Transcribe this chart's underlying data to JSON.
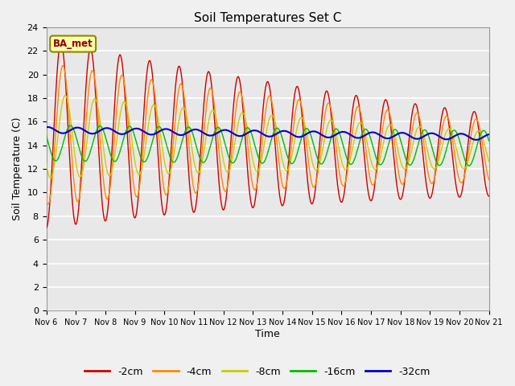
{
  "title": "Soil Temperatures Set C",
  "xlabel": "Time",
  "ylabel": "Soil Temperature (C)",
  "xlim": [
    0,
    15
  ],
  "ylim": [
    0,
    24
  ],
  "yticks": [
    0,
    2,
    4,
    6,
    8,
    10,
    12,
    14,
    16,
    18,
    20,
    22,
    24
  ],
  "xtick_labels": [
    "Nov 6",
    "Nov 7",
    "Nov 8",
    "Nov 9",
    "Nov 10",
    "Nov 11",
    "Nov 12",
    "Nov 13",
    "Nov 14",
    "Nov 15",
    "Nov 16",
    "Nov 17",
    "Nov 18",
    "Nov 19",
    "Nov 20",
    "Nov 21"
  ],
  "colors": {
    "-2cm": "#cc0000",
    "-4cm": "#ff8800",
    "-8cm": "#cccc00",
    "-16cm": "#00bb00",
    "-32cm": "#0000cc"
  },
  "legend_labels": [
    "-2cm",
    "-4cm",
    "-8cm",
    "-16cm",
    "-32cm"
  ],
  "annotation_text": "BA_met",
  "annotation_color": "#8B0000",
  "annotation_bg": "#ffffaa",
  "fig_bg": "#f0f0f0",
  "plot_bg": "#e8e8e8",
  "grid_color": "#ffffff"
}
